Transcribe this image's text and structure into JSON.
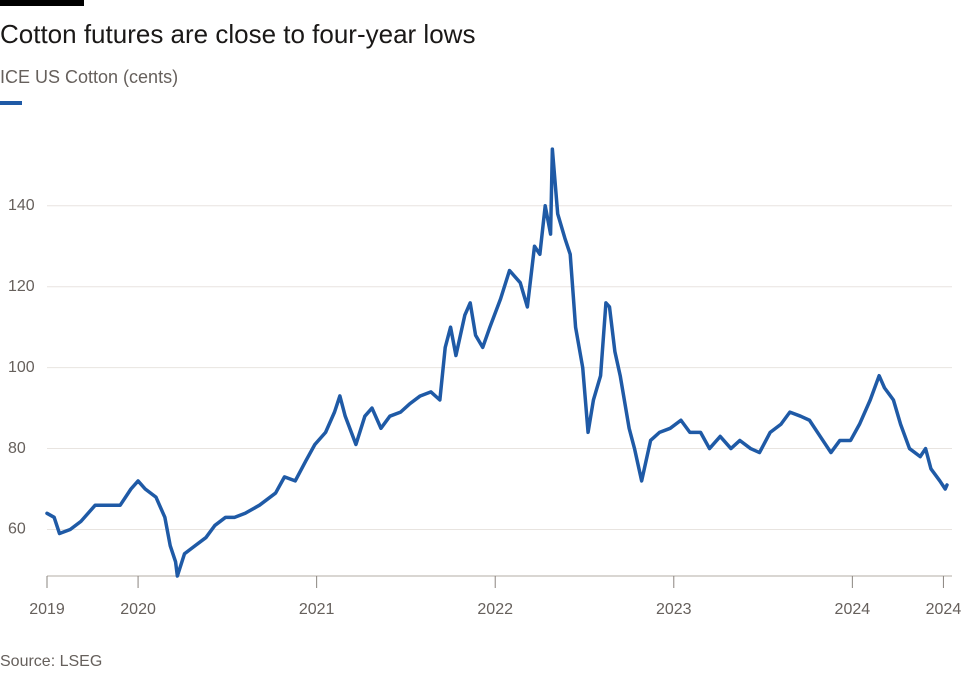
{
  "chart_data": {
    "type": "line",
    "title": "Cotton futures are close to four-year lows",
    "subtitle": "ICE US Cotton (cents)",
    "source": "Source: LSEG",
    "xlim": [
      2019.49,
      2024.53
    ],
    "xticks": [
      {
        "value": 2019.49,
        "label": "2019"
      },
      2020,
      2021,
      2022,
      2023,
      2024,
      {
        "value": 2024.51,
        "label": "2024"
      }
    ],
    "ylim": [
      48.5,
      157
    ],
    "yticks": [
      60,
      80,
      100,
      120,
      140
    ],
    "grid": true,
    "series": [
      {
        "name": "ICE US Cotton",
        "color": "#1f5aa6",
        "x": [
          2019.49,
          2019.53,
          2019.56,
          2019.62,
          2019.68,
          2019.76,
          2019.84,
          2019.9,
          2019.96,
          2020.0,
          2020.04,
          2020.1,
          2020.15,
          2020.18,
          2020.21,
          2020.22,
          2020.26,
          2020.32,
          2020.38,
          2020.43,
          2020.49,
          2020.54,
          2020.6,
          2020.68,
          2020.77,
          2020.82,
          2020.88,
          2020.94,
          2020.99,
          2021.05,
          2021.1,
          2021.13,
          2021.16,
          2021.22,
          2021.27,
          2021.31,
          2021.36,
          2021.41,
          2021.47,
          2021.52,
          2021.58,
          2021.64,
          2021.69,
          2021.72,
          2021.75,
          2021.78,
          2021.83,
          2021.86,
          2021.89,
          2021.93,
          2021.97,
          2022.03,
          2022.08,
          2022.14,
          2022.18,
          2022.22,
          2022.25,
          2022.28,
          2022.31,
          2022.32,
          2022.35,
          2022.39,
          2022.42,
          2022.45,
          2022.49,
          2022.52,
          2022.55,
          2022.59,
          2022.62,
          2022.64,
          2022.67,
          2022.7,
          2022.75,
          2022.78,
          2022.82,
          2022.87,
          2022.92,
          2022.98,
          2023.04,
          2023.09,
          2023.15,
          2023.2,
          2023.26,
          2023.32,
          2023.37,
          2023.43,
          2023.48,
          2023.54,
          2023.6,
          2023.65,
          2023.71,
          2023.76,
          2023.82,
          2023.88,
          2023.93,
          2023.99,
          2024.04,
          2024.1,
          2024.15,
          2024.18,
          2024.23,
          2024.27,
          2024.32,
          2024.38,
          2024.41,
          2024.44,
          2024.49,
          2024.52,
          2024.53
        ],
        "values": [
          64,
          63,
          59,
          60,
          62,
          66,
          66,
          66,
          70,
          72,
          70,
          68,
          63,
          56,
          52,
          48.5,
          54,
          56,
          58,
          61,
          63,
          63,
          64,
          66,
          69,
          73,
          72,
          77,
          81,
          84,
          89,
          93,
          88,
          81,
          88,
          90,
          85,
          88,
          89,
          91,
          93,
          94,
          92,
          105,
          110,
          103,
          113,
          116,
          108,
          105,
          110,
          117,
          124,
          121,
          115,
          130,
          128,
          140,
          133,
          154,
          138,
          132,
          128,
          110,
          100,
          84,
          92,
          98,
          116,
          115,
          104,
          98,
          85,
          80,
          72,
          82,
          84,
          85,
          87,
          84,
          84,
          80,
          83,
          80,
          82,
          80,
          79,
          84,
          86,
          89,
          88,
          87,
          83,
          79,
          82,
          82,
          86,
          92,
          98,
          95,
          92,
          86,
          80,
          78,
          80,
          75,
          72,
          70,
          71
        ]
      }
    ]
  }
}
